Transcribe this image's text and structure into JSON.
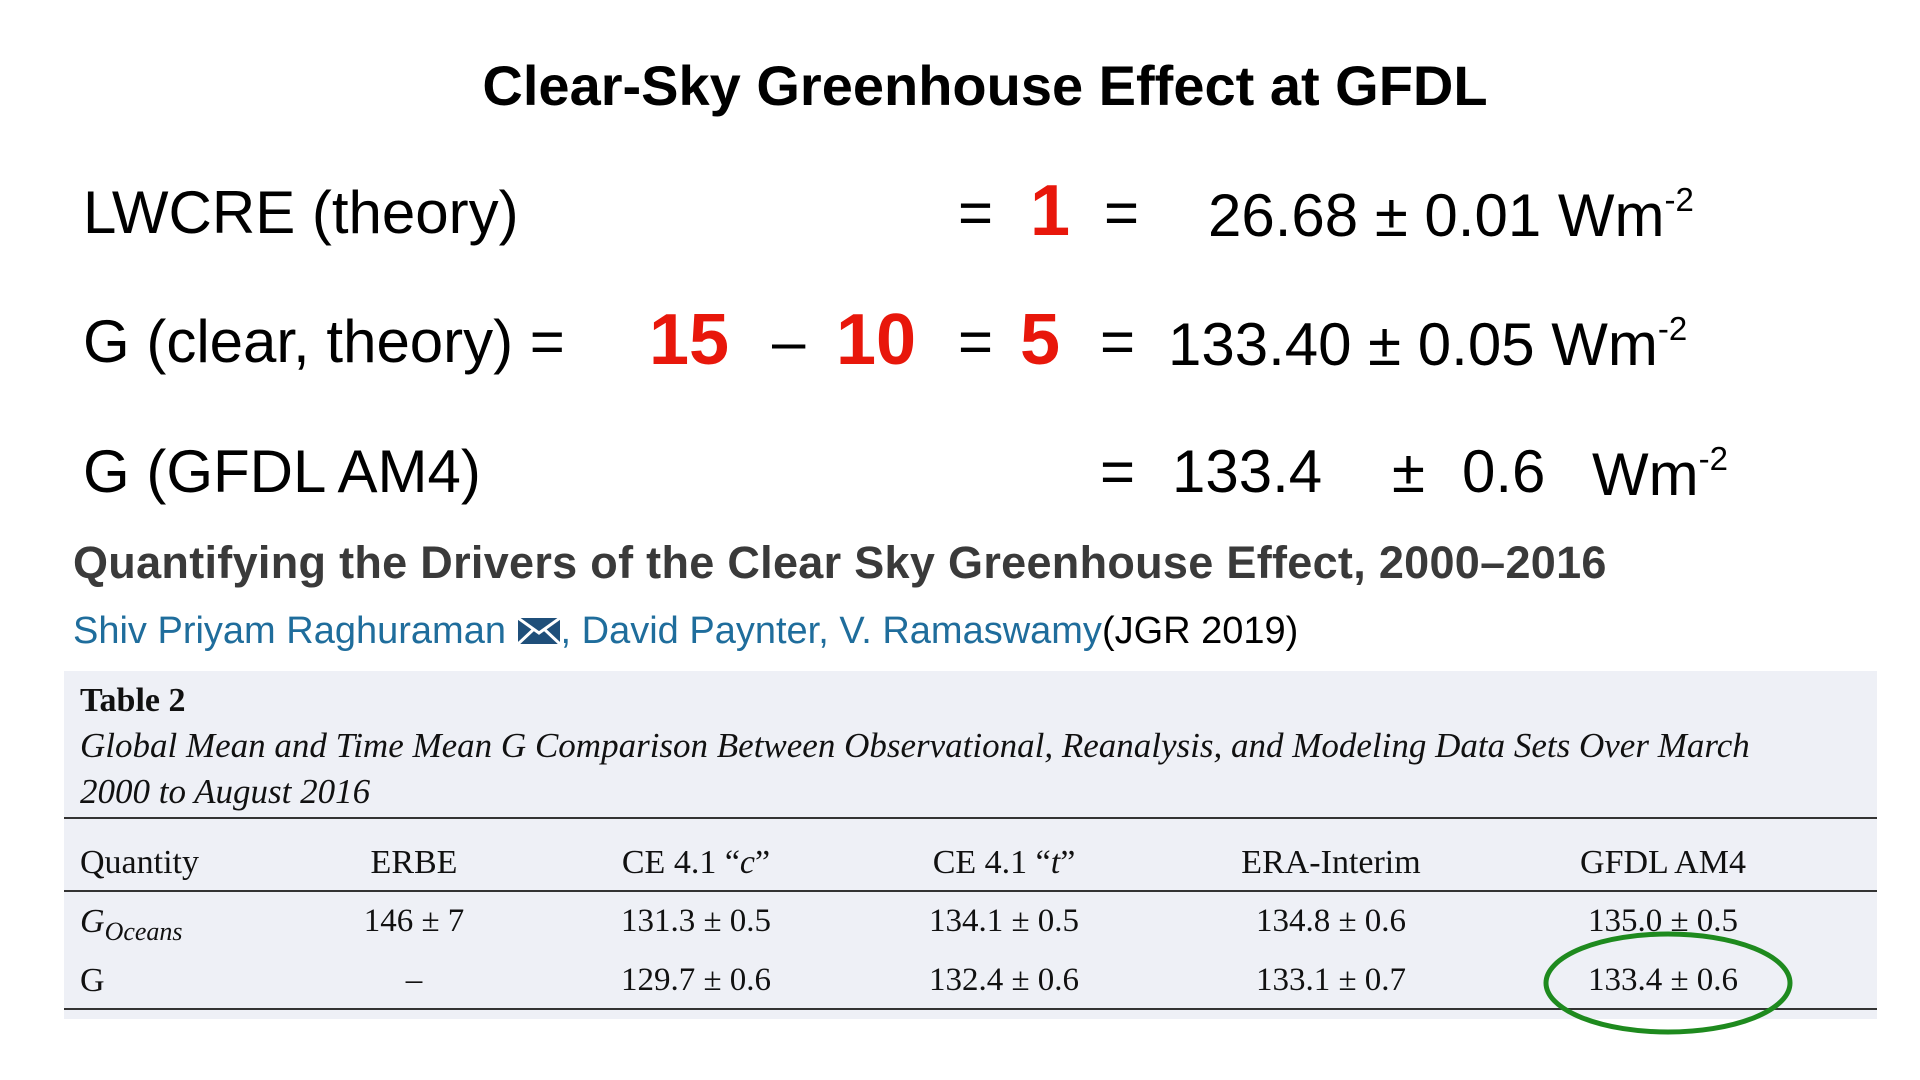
{
  "title": "Clear-Sky Greenhouse Effect at GFDL",
  "equations": [
    {
      "label": "LWCRE (theory)",
      "eq1": "=",
      "a": "1",
      "eq2": "=",
      "value": "26.68 ± 0.01 Wm",
      "exponent": "-2"
    },
    {
      "label": "G (clear, theory) =",
      "a": "15",
      "minus": "–",
      "b": "10",
      "eq1": "=",
      "c": "5",
      "eq2": "=",
      "value": "133.40 ± 0.05 Wm",
      "exponent": "-2"
    },
    {
      "label": "G (GFDL AM4)",
      "eq": "=",
      "mean": "133.4",
      "pm": "±",
      "err": "0.6",
      "unit": "Wm",
      "exponent": "-2"
    }
  ],
  "paper": {
    "title": "Quantifying the Drivers of the Clear Sky Greenhouse Effect, 2000–2016",
    "authors": [
      "Shiv Priyam Raghuraman",
      "David Paynter",
      "V. Ramaswamy"
    ],
    "separator": ",",
    "journal": "(JGR 2019)"
  },
  "table": {
    "label": "Table 2",
    "caption": [
      "Global Mean and Time Mean G Comparison Between Observational, Reanalysis, and Modeling Data Sets Over March",
      "2000 to August 2016"
    ],
    "header": [
      "Quantity",
      "ERBE",
      [
        "CE 4.1 “",
        "c",
        "”"
      ],
      [
        "CE 4.1 “",
        "t",
        "”"
      ],
      "ERA-Interim",
      "GFDL AM4"
    ],
    "rows": [
      {
        "label": [
          "G",
          "Oceans"
        ],
        "cells": [
          "146 ± 7",
          "131.3 ± 0.5",
          "134.1 ± 0.5",
          "134.8 ± 0.6",
          "135.0 ± 0.5"
        ]
      },
      {
        "label": [
          "G"
        ],
        "cells": [
          "–",
          "129.7 ± 0.6",
          "132.4 ± 0.6",
          "133.1 ± 0.7",
          "133.4 ± 0.6"
        ]
      }
    ]
  }
}
